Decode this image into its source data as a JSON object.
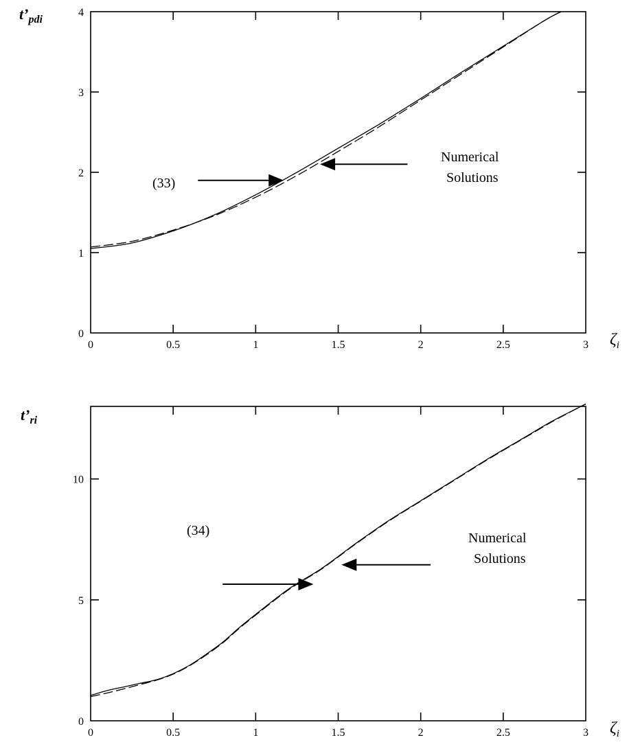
{
  "chart_data": [
    {
      "type": "line",
      "ylabel_main": "t’",
      "ylabel_sub": "pdi",
      "xlabel_main": "ζ",
      "xlabel_sub": "i",
      "xlim": [
        0,
        3
      ],
      "ylim": [
        0,
        4
      ],
      "xticks": [
        0,
        0.5,
        1,
        1.5,
        2,
        2.5,
        3
      ],
      "xtick_labels": [
        "0",
        "0.5",
        "1",
        "1.5",
        "2",
        "2.5",
        "3"
      ],
      "yticks": [
        0,
        1,
        2,
        3,
        4
      ],
      "ytick_labels": [
        "0",
        "1",
        "2",
        "3",
        "4"
      ],
      "series": [
        {
          "style": "solid",
          "x": [
            0,
            0.25,
            0.5,
            0.75,
            1.0,
            1.25,
            1.5,
            1.75,
            2.0,
            2.25,
            2.5,
            2.75,
            2.85
          ],
          "y": [
            1.05,
            1.12,
            1.27,
            1.47,
            1.72,
            2.0,
            2.3,
            2.6,
            2.92,
            3.25,
            3.57,
            3.89,
            4.0
          ]
        },
        {
          "style": "dashed",
          "x": [
            0,
            0.25,
            0.5,
            0.75,
            1.0,
            1.25,
            1.5,
            1.75,
            2.0,
            2.25,
            2.5,
            2.75,
            2.85
          ],
          "y": [
            1.07,
            1.14,
            1.28,
            1.46,
            1.69,
            1.96,
            2.26,
            2.57,
            2.9,
            3.23,
            3.56,
            3.89,
            4.0
          ]
        }
      ],
      "annotations": [
        {
          "label": "(33)",
          "direction": "right",
          "target_x": 1.17,
          "target_y": 1.9,
          "tail_x": 0.65
        },
        {
          "label_lines": [
            "Numerical",
            "Solutions"
          ],
          "direction": "left",
          "target_x": 1.39,
          "target_y": 2.1,
          "tail_x": 1.92
        }
      ]
    },
    {
      "type": "line",
      "ylabel_main": "t’",
      "ylabel_sub": "ri",
      "xlabel_main": "ζ",
      "xlabel_sub": "i",
      "xlim": [
        0,
        3
      ],
      "ylim": [
        0,
        13
      ],
      "xticks": [
        0,
        0.5,
        1,
        1.5,
        2,
        2.5,
        3
      ],
      "xtick_labels": [
        "0",
        "0.5",
        "1",
        "1.5",
        "2",
        "2.5",
        "3"
      ],
      "yticks": [
        0,
        5,
        10
      ],
      "ytick_labels": [
        "0",
        "5",
        "10"
      ],
      "series": [
        {
          "style": "solid",
          "x": [
            0,
            0.1,
            0.2,
            0.3,
            0.4,
            0.5,
            0.6,
            0.7,
            0.8,
            0.9,
            1.0,
            1.2,
            1.4,
            1.6,
            1.8,
            2.0,
            2.2,
            2.4,
            2.6,
            2.8,
            3.0
          ],
          "y": [
            1.05,
            1.25,
            1.4,
            1.55,
            1.7,
            1.95,
            2.3,
            2.75,
            3.25,
            3.85,
            4.4,
            5.45,
            6.3,
            7.3,
            8.25,
            9.1,
            9.95,
            10.8,
            11.6,
            12.4,
            13.1
          ]
        },
        {
          "style": "dashed",
          "x": [
            0,
            0.1,
            0.2,
            0.3,
            0.4,
            0.5,
            0.6,
            0.7,
            0.8,
            0.9,
            1.0,
            1.2,
            1.4,
            1.6,
            1.8,
            2.0,
            2.2,
            2.4,
            2.6,
            2.8,
            3.0
          ],
          "y": [
            1.0,
            1.15,
            1.32,
            1.5,
            1.68,
            1.93,
            2.28,
            2.72,
            3.22,
            3.82,
            4.37,
            5.42,
            6.28,
            7.28,
            8.23,
            9.08,
            9.93,
            10.78,
            11.58,
            12.38,
            13.1
          ]
        }
      ],
      "annotations": [
        {
          "label": "(34)",
          "direction": "right",
          "target_x": 1.35,
          "target_y": 5.65,
          "tail_x": 0.8
        },
        {
          "label_lines": [
            "Numerical",
            "Solutions"
          ],
          "direction": "left",
          "target_x": 1.52,
          "target_y": 6.45,
          "tail_x": 2.06
        }
      ]
    }
  ]
}
